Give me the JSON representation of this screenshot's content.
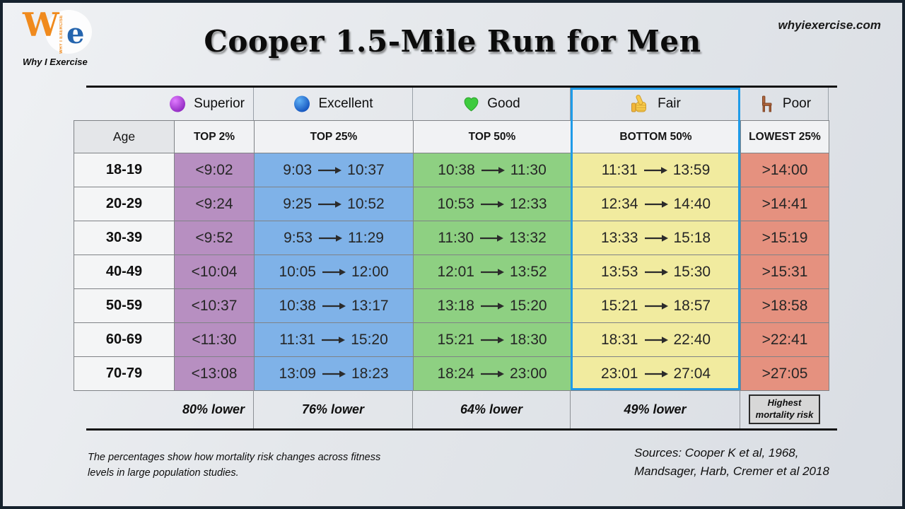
{
  "header": {
    "title": "Cooper 1.5-Mile Run for Men",
    "site_url": "whyiexercise.com"
  },
  "logo": {
    "w": "W",
    "e": "e",
    "vertical": "WHY I EXERCISE",
    "caption": "Why I Exercise"
  },
  "age_header": "Age",
  "colors": {
    "superior": "#b78fc1",
    "excellent": "#7fb2e8",
    "good": "#8ed082",
    "fair": "#f1eb9f",
    "poor": "#e5917f",
    "highlight_border": "#1f9be8"
  },
  "categories": [
    {
      "id": "superior",
      "label": "Superior",
      "icon": "purple-sphere-icon",
      "subheader": "TOP 2%",
      "mortality": "80% lower"
    },
    {
      "id": "excellent",
      "label": "Excellent",
      "icon": "blue-sphere-icon",
      "subheader": "TOP 25%",
      "mortality": "76% lower"
    },
    {
      "id": "good",
      "label": "Good",
      "icon": "green-heart-icon",
      "subheader": "TOP 50%",
      "mortality": "64% lower"
    },
    {
      "id": "fair",
      "label": "Fair",
      "icon": "thumbs-up-icon",
      "subheader": "BOTTOM 50%",
      "mortality": "49% lower",
      "highlighted": true
    },
    {
      "id": "poor",
      "label": "Poor",
      "icon": "chair-icon",
      "subheader": "LOWEST 25%",
      "mortality_box": {
        "line1": "Highest",
        "line2": "mortality risk"
      }
    }
  ],
  "chart_data": {
    "type": "table",
    "title": "Cooper 1.5-Mile Run for Men",
    "columns": [
      "Age",
      "Superior (TOP 2%)",
      "Excellent (TOP 25%)",
      "Good (TOP 50%)",
      "Fair (BOTTOM 50%)",
      "Poor (LOWEST 25%)"
    ],
    "rows": [
      {
        "age": "18-19",
        "superior": "<9:02",
        "excellent": [
          "9:03",
          "10:37"
        ],
        "good": [
          "10:38",
          "11:30"
        ],
        "fair": [
          "11:31",
          "13:59"
        ],
        "poor": ">14:00"
      },
      {
        "age": "20-29",
        "superior": "<9:24",
        "excellent": [
          "9:25",
          "10:52"
        ],
        "good": [
          "10:53",
          "12:33"
        ],
        "fair": [
          "12:34",
          "14:40"
        ],
        "poor": ">14:41"
      },
      {
        "age": "30-39",
        "superior": "<9:52",
        "excellent": [
          "9:53",
          "11:29"
        ],
        "good": [
          "11:30",
          "13:32"
        ],
        "fair": [
          "13:33",
          "15:18"
        ],
        "poor": ">15:19"
      },
      {
        "age": "40-49",
        "superior": "<10:04",
        "excellent": [
          "10:05",
          "12:00"
        ],
        "good": [
          "12:01",
          "13:52"
        ],
        "fair": [
          "13:53",
          "15:30"
        ],
        "poor": ">15:31"
      },
      {
        "age": "50-59",
        "superior": "<10:37",
        "excellent": [
          "10:38",
          "13:17"
        ],
        "good": [
          "13:18",
          "15:20"
        ],
        "fair": [
          "15:21",
          "18:57"
        ],
        "poor": ">18:58"
      },
      {
        "age": "60-69",
        "superior": "<11:30",
        "excellent": [
          "11:31",
          "15:20"
        ],
        "good": [
          "15:21",
          "18:30"
        ],
        "fair": [
          "18:31",
          "22:40"
        ],
        "poor": ">22:41"
      },
      {
        "age": "70-79",
        "superior": "<13:08",
        "excellent": [
          "13:09",
          "18:23"
        ],
        "good": [
          "18:24",
          "23:00"
        ],
        "fair": [
          "23:01",
          "27:04"
        ],
        "poor": ">27:05"
      }
    ],
    "mortality_row": [
      "80% lower",
      "76% lower",
      "64% lower",
      "49% lower",
      "Highest mortality risk"
    ]
  },
  "footnote": {
    "line1": "The percentages show how mortality risk changes across fitness",
    "line2": "levels in large population studies."
  },
  "sources": {
    "line1": "Sources:  Cooper K et al, 1968,",
    "line2": "Mandsager, Harb, Cremer et al 2018"
  }
}
